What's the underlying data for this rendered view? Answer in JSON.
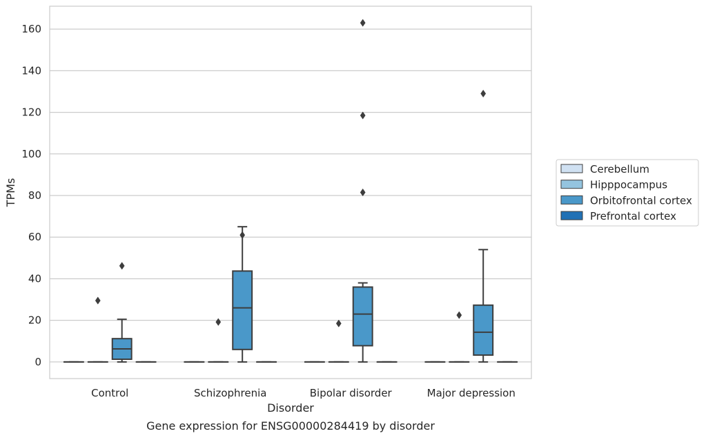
{
  "chart_data": {
    "type": "box",
    "caption": "Gene expression for ENSG00000284419 by disorder",
    "xlabel": "Disorder",
    "ylabel": "TPMs",
    "ylim": [
      -8,
      171
    ],
    "yticks": [
      0,
      20,
      40,
      60,
      80,
      100,
      120,
      140,
      160
    ],
    "grid": true,
    "legend_position": "right",
    "categories": [
      "Control",
      "Schizophrenia",
      "Bipolar disorder",
      "Major depression"
    ],
    "series": [
      {
        "name": "Cerebellum",
        "color": "#d0e1f2",
        "boxes": [
          {
            "q1": 0,
            "median": 0,
            "q3": 0,
            "whisker_low": 0,
            "whisker_high": 0,
            "fliers": []
          },
          {
            "q1": 0,
            "median": 0,
            "q3": 0,
            "whisker_low": 0,
            "whisker_high": 0,
            "fliers": []
          },
          {
            "q1": 0,
            "median": 0,
            "q3": 0,
            "whisker_low": 0,
            "whisker_high": 0,
            "fliers": []
          },
          {
            "q1": 0,
            "median": 0,
            "q3": 0,
            "whisker_low": 0,
            "whisker_high": 0,
            "fliers": []
          }
        ]
      },
      {
        "name": "Hipppocampus",
        "color": "#94c4df",
        "boxes": [
          {
            "q1": 0,
            "median": 0,
            "q3": 0,
            "whisker_low": 0,
            "whisker_high": 0,
            "fliers": [
              29.5
            ]
          },
          {
            "q1": 0,
            "median": 0,
            "q3": 0,
            "whisker_low": 0,
            "whisker_high": 0,
            "fliers": [
              19.2
            ]
          },
          {
            "q1": 0,
            "median": 0,
            "q3": 0,
            "whisker_low": 0,
            "whisker_high": 0,
            "fliers": [
              18.5
            ]
          },
          {
            "q1": 0,
            "median": 0,
            "q3": 0,
            "whisker_low": 0,
            "whisker_high": 0,
            "fliers": [
              22.5
            ]
          }
        ]
      },
      {
        "name": "Orbitofrontal cortex",
        "color": "#4a98c9",
        "boxes": [
          {
            "q1": 1.3,
            "median": 6.3,
            "q3": 11.2,
            "whisker_low": 0,
            "whisker_high": 20.5,
            "fliers": [
              46.2
            ]
          },
          {
            "q1": 6.0,
            "median": 26.0,
            "q3": 43.7,
            "whisker_low": 0,
            "whisker_high": 65.0,
            "fliers": [
              61.0
            ]
          },
          {
            "q1": 7.8,
            "median": 23.0,
            "q3": 36.0,
            "whisker_low": 0,
            "whisker_high": 38.0,
            "fliers": [
              81.5,
              118.5,
              163.0
            ]
          },
          {
            "q1": 3.3,
            "median": 14.3,
            "q3": 27.3,
            "whisker_low": 0,
            "whisker_high": 54.0,
            "fliers": [
              129.0
            ]
          }
        ]
      },
      {
        "name": "Prefrontal cortex",
        "color": "#2171b5",
        "boxes": [
          {
            "q1": 0,
            "median": 0,
            "q3": 0,
            "whisker_low": 0,
            "whisker_high": 0,
            "fliers": []
          },
          {
            "q1": 0,
            "median": 0,
            "q3": 0,
            "whisker_low": 0,
            "whisker_high": 0,
            "fliers": []
          },
          {
            "q1": 0,
            "median": 0,
            "q3": 0,
            "whisker_low": 0,
            "whisker_high": 0,
            "fliers": []
          },
          {
            "q1": 0,
            "median": 0,
            "q3": 0,
            "whisker_low": 0,
            "whisker_high": 0,
            "fliers": []
          }
        ]
      }
    ]
  }
}
